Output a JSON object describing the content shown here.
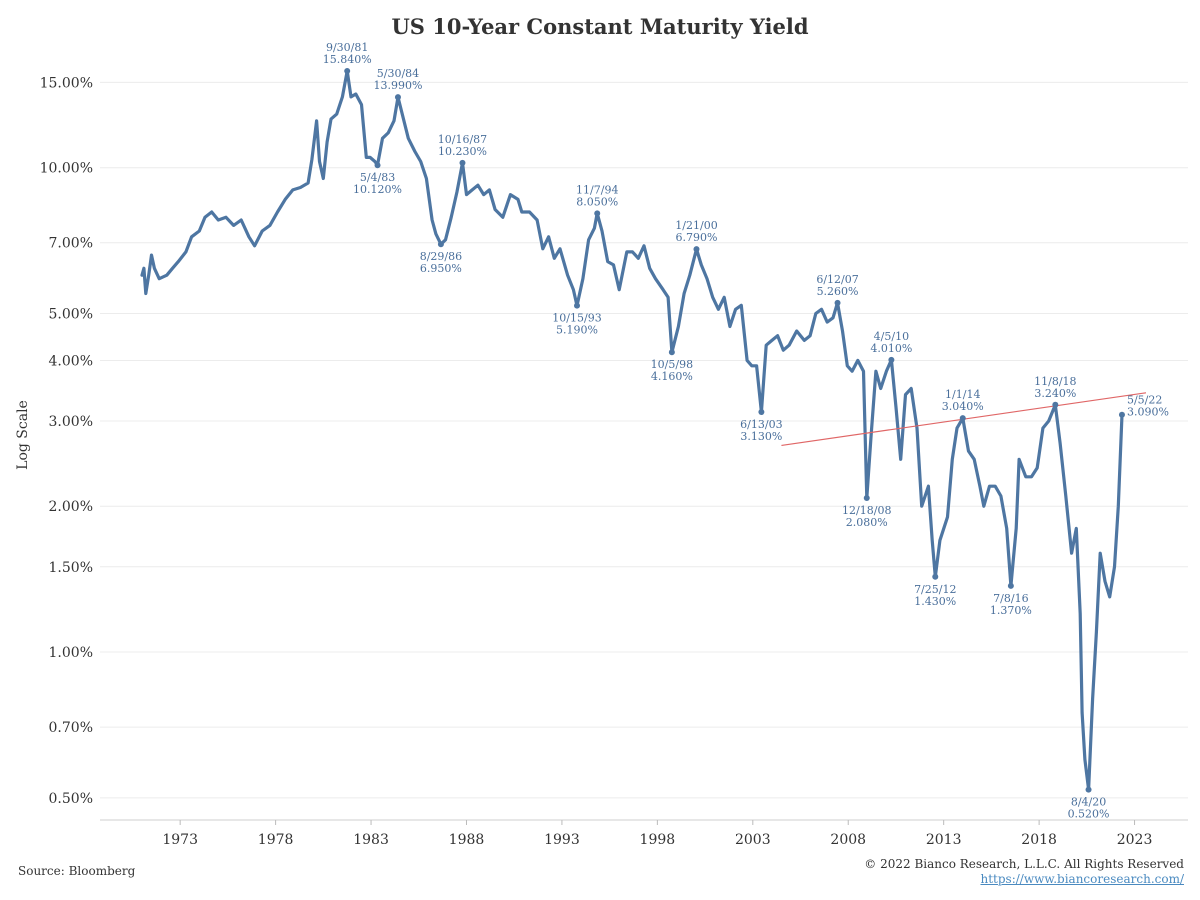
{
  "chart_data": {
    "type": "line",
    "title": "US 10-Year Constant Maturity Yield",
    "ylabel": "Log Scale",
    "xlabel": "",
    "y_scale": "log",
    "ylim": [
      0.45,
      17.5
    ],
    "xlim": [
      1968.8,
      2025.8
    ],
    "grid": "horizontal",
    "y_ticks": [
      {
        "value": 0.5,
        "label": "0.50%"
      },
      {
        "value": 0.7,
        "label": "0.70%"
      },
      {
        "value": 1.0,
        "label": "1.00%"
      },
      {
        "value": 1.5,
        "label": "1.50%"
      },
      {
        "value": 2.0,
        "label": "2.00%"
      },
      {
        "value": 3.0,
        "label": "3.00%"
      },
      {
        "value": 4.0,
        "label": "4.00%"
      },
      {
        "value": 5.0,
        "label": "5.00%"
      },
      {
        "value": 7.0,
        "label": "7.00%"
      },
      {
        "value": 10.0,
        "label": "10.00%"
      },
      {
        "value": 15.0,
        "label": "15.00%"
      }
    ],
    "x_ticks": [
      "1973",
      "1978",
      "1983",
      "1988",
      "1993",
      "1998",
      "2003",
      "2008",
      "2013",
      "2018",
      "2023"
    ],
    "series_color": "#4e76a2",
    "series": [
      {
        "x": [
          1971.0,
          1971.1,
          1971.2,
          1971.35,
          1971.5,
          1971.65,
          1971.9,
          1972.3,
          1972.6,
          1972.9,
          1973.3,
          1973.6,
          1974.0,
          1974.3,
          1974.65,
          1975.0,
          1975.4,
          1975.8,
          1976.2,
          1976.6,
          1976.9,
          1977.3,
          1977.7,
          1978.1,
          1978.5,
          1978.9,
          1979.3,
          1979.7,
          1979.9,
          1980.15,
          1980.3,
          1980.5,
          1980.7,
          1980.9,
          1981.2,
          1981.5,
          1981.75,
          1981.95,
          1982.2,
          1982.5,
          1982.75,
          1982.95,
          1983.2,
          1983.34,
          1983.6,
          1983.9,
          1984.2,
          1984.41,
          1984.7,
          1984.95,
          1985.3,
          1985.6,
          1985.9,
          1986.2,
          1986.4,
          1986.66,
          1986.9,
          1987.2,
          1987.5,
          1987.79,
          1988.0,
          1988.3,
          1988.6,
          1988.9,
          1989.2,
          1989.5,
          1989.9,
          1990.3,
          1990.7,
          1990.9,
          1991.3,
          1991.7,
          1992.0,
          1992.3,
          1992.6,
          1992.9,
          1993.3,
          1993.6,
          1993.79,
          1994.1,
          1994.4,
          1994.7,
          1994.85,
          1995.1,
          1995.4,
          1995.7,
          1996.0,
          1996.4,
          1996.7,
          1997.0,
          1997.3,
          1997.6,
          1997.9,
          1998.3,
          1998.56,
          1998.76,
          1999.1,
          1999.4,
          1999.7,
          2000.05,
          2000.3,
          2000.6,
          2000.9,
          2001.2,
          2001.5,
          2001.8,
          2002.1,
          2002.4,
          2002.7,
          2002.95,
          2003.2,
          2003.45,
          2003.7,
          2004.0,
          2004.3,
          2004.6,
          2004.9,
          2005.3,
          2005.7,
          2006.0,
          2006.3,
          2006.6,
          2006.9,
          2007.2,
          2007.44,
          2007.7,
          2007.95,
          2008.2,
          2008.5,
          2008.8,
          2008.97,
          2009.2,
          2009.45,
          2009.7,
          2010.0,
          2010.26,
          2010.5,
          2010.75,
          2011.0,
          2011.3,
          2011.6,
          2011.85,
          2012.2,
          2012.4,
          2012.56,
          2012.8,
          2013.2,
          2013.45,
          2013.7,
          2014.0,
          2014.3,
          2014.6,
          2014.9,
          2015.1,
          2015.4,
          2015.7,
          2016.0,
          2016.3,
          2016.52,
          2016.8,
          2016.95,
          2017.3,
          2017.6,
          2017.9,
          2018.2,
          2018.5,
          2018.85,
          2019.1,
          2019.4,
          2019.7,
          2019.95,
          2020.15,
          2020.25,
          2020.4,
          2020.59,
          2020.8,
          2021.0,
          2021.2,
          2021.45,
          2021.7,
          2021.95,
          2022.15,
          2022.34
        ],
        "y": [
          6.0,
          6.2,
          5.5,
          6.0,
          6.6,
          6.2,
          5.9,
          6.0,
          6.2,
          6.4,
          6.7,
          7.2,
          7.4,
          7.9,
          8.1,
          7.8,
          7.9,
          7.6,
          7.8,
          7.2,
          6.9,
          7.4,
          7.6,
          8.1,
          8.6,
          9.0,
          9.1,
          9.3,
          10.4,
          12.5,
          10.3,
          9.5,
          11.3,
          12.6,
          12.9,
          14.0,
          15.84,
          14.0,
          14.2,
          13.5,
          10.5,
          10.5,
          10.3,
          10.12,
          11.5,
          11.8,
          12.5,
          13.99,
          12.6,
          11.5,
          10.8,
          10.3,
          9.5,
          7.8,
          7.3,
          6.95,
          7.1,
          7.9,
          8.9,
          10.23,
          8.8,
          9.0,
          9.2,
          8.8,
          9.0,
          8.2,
          7.9,
          8.8,
          8.6,
          8.1,
          8.1,
          7.8,
          6.8,
          7.2,
          6.5,
          6.8,
          6.0,
          5.6,
          5.19,
          5.9,
          7.1,
          7.5,
          8.05,
          7.4,
          6.4,
          6.3,
          5.6,
          6.7,
          6.7,
          6.5,
          6.9,
          6.2,
          5.9,
          5.6,
          5.4,
          4.16,
          4.7,
          5.5,
          6.0,
          6.79,
          6.3,
          5.9,
          5.4,
          5.1,
          5.4,
          4.7,
          5.1,
          5.2,
          4.0,
          3.9,
          3.9,
          3.13,
          4.3,
          4.4,
          4.5,
          4.2,
          4.3,
          4.6,
          4.4,
          4.5,
          5.0,
          5.1,
          4.8,
          4.9,
          5.26,
          4.6,
          3.9,
          3.8,
          4.0,
          3.8,
          2.08,
          2.8,
          3.8,
          3.5,
          3.8,
          4.01,
          3.2,
          2.5,
          3.4,
          3.5,
          2.9,
          2.0,
          2.2,
          1.7,
          1.43,
          1.7,
          1.9,
          2.5,
          2.9,
          3.04,
          2.6,
          2.5,
          2.2,
          2.0,
          2.2,
          2.2,
          2.1,
          1.8,
          1.37,
          1.8,
          2.5,
          2.3,
          2.3,
          2.4,
          2.9,
          3.0,
          3.24,
          2.7,
          2.1,
          1.6,
          1.8,
          1.2,
          0.75,
          0.6,
          0.52,
          0.8,
          1.1,
          1.6,
          1.4,
          1.3,
          1.5,
          2.0,
          3.09
        ]
      }
    ],
    "trendline": {
      "x": [
        2004.5,
        2023.6
      ],
      "y": [
        2.67,
        3.43
      ],
      "color": "#e06666"
    },
    "annotations": [
      {
        "date": "9/30/81",
        "value": "15.840%",
        "x": 1981.75,
        "y": 15.84,
        "pos": "above"
      },
      {
        "date": "5/30/84",
        "value": "13.990%",
        "x": 1984.41,
        "y": 13.99,
        "pos": "above"
      },
      {
        "date": "5/4/83",
        "value": "10.120%",
        "x": 1983.34,
        "y": 10.12,
        "pos": "below"
      },
      {
        "date": "10/16/87",
        "value": "10.230%",
        "x": 1987.79,
        "y": 10.23,
        "pos": "above"
      },
      {
        "date": "8/29/86",
        "value": "6.950%",
        "x": 1986.66,
        "y": 6.95,
        "pos": "below"
      },
      {
        "date": "11/7/94",
        "value": "8.050%",
        "x": 1994.85,
        "y": 8.05,
        "pos": "above"
      },
      {
        "date": "10/15/93",
        "value": "5.190%",
        "x": 1993.79,
        "y": 5.19,
        "pos": "below"
      },
      {
        "date": "1/21/00",
        "value": "6.790%",
        "x": 2000.05,
        "y": 6.79,
        "pos": "above"
      },
      {
        "date": "10/5/98",
        "value": "4.160%",
        "x": 1998.76,
        "y": 4.16,
        "pos": "below"
      },
      {
        "date": "6/13/03",
        "value": "3.130%",
        "x": 2003.45,
        "y": 3.13,
        "pos": "below"
      },
      {
        "date": "6/12/07",
        "value": "5.260%",
        "x": 2007.44,
        "y": 5.26,
        "pos": "above"
      },
      {
        "date": "4/5/10",
        "value": "4.010%",
        "x": 2010.26,
        "y": 4.01,
        "pos": "above"
      },
      {
        "date": "12/18/08",
        "value": "2.080%",
        "x": 2008.97,
        "y": 2.08,
        "pos": "below"
      },
      {
        "date": "1/1/14",
        "value": "3.040%",
        "x": 2014.0,
        "y": 3.04,
        "pos": "above"
      },
      {
        "date": "7/25/12",
        "value": "1.430%",
        "x": 2012.56,
        "y": 1.43,
        "pos": "below"
      },
      {
        "date": "11/8/18",
        "value": "3.240%",
        "x": 2018.85,
        "y": 3.24,
        "pos": "above"
      },
      {
        "date": "7/8/16",
        "value": "1.370%",
        "x": 2016.52,
        "y": 1.37,
        "pos": "below"
      },
      {
        "date": "8/4/20",
        "value": "0.520%",
        "x": 2020.59,
        "y": 0.52,
        "pos": "below"
      },
      {
        "date": "5/5/22",
        "value": "3.090%",
        "x": 2022.34,
        "y": 3.09,
        "pos": "right"
      }
    ]
  },
  "footer": {
    "source": "Source: Bloomberg",
    "copyright": "© 2022 Bianco Research, L.L.C. All Rights Reserved",
    "url": "https://www.biancoresearch.com/"
  }
}
